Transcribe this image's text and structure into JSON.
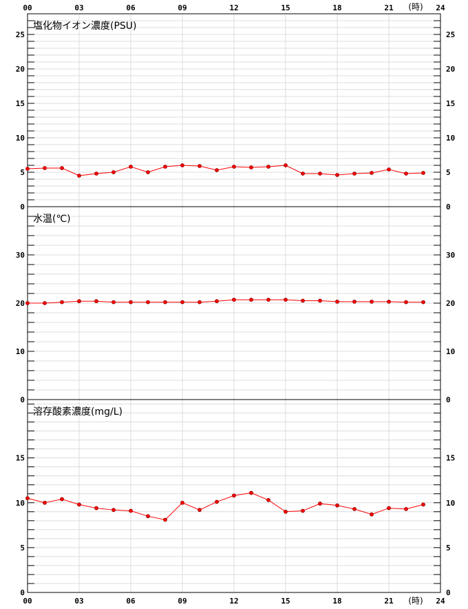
{
  "x_ticks": [
    "00",
    "03",
    "06",
    "09",
    "12",
    "15",
    "18",
    "21",
    "24"
  ],
  "time_unit": "(時)",
  "chart_data": [
    {
      "type": "line",
      "title": "塩化物イオン濃度(PSU)",
      "ylim": [
        0,
        28
      ],
      "yticks": [
        0,
        5,
        10,
        15,
        20,
        25
      ],
      "x": [
        0,
        1,
        2,
        3,
        4,
        5,
        6,
        7,
        8,
        9,
        10,
        11,
        12,
        13,
        14,
        15,
        16,
        17,
        18,
        19,
        20,
        21,
        22,
        23
      ],
      "values": [
        5.5,
        5.6,
        5.6,
        4.5,
        4.8,
        5.0,
        5.8,
        5.0,
        5.8,
        6.0,
        5.9,
        5.3,
        5.8,
        5.7,
        5.8,
        6.0,
        4.8,
        4.8,
        4.6,
        4.8,
        4.9,
        5.4,
        4.8,
        4.9
      ],
      "color": "#ff0000"
    },
    {
      "type": "line",
      "title": "水温(℃)",
      "ylim": [
        0,
        40
      ],
      "yticks": [
        0,
        10,
        20,
        30
      ],
      "x": [
        0,
        1,
        2,
        3,
        4,
        5,
        6,
        7,
        8,
        9,
        10,
        11,
        12,
        13,
        14,
        15,
        16,
        17,
        18,
        19,
        20,
        21,
        22,
        23
      ],
      "values": [
        20.0,
        20.0,
        20.2,
        20.4,
        20.4,
        20.2,
        20.2,
        20.2,
        20.2,
        20.2,
        20.2,
        20.4,
        20.7,
        20.7,
        20.7,
        20.7,
        20.5,
        20.5,
        20.3,
        20.3,
        20.3,
        20.3,
        20.2,
        20.2
      ],
      "color": "#ff0000"
    },
    {
      "type": "line",
      "title": "溶存酸素濃度(mg/L)",
      "ylim": [
        0,
        21.5
      ],
      "yticks": [
        0,
        5,
        10,
        15
      ],
      "x": [
        0,
        1,
        2,
        3,
        4,
        5,
        6,
        7,
        8,
        9,
        10,
        11,
        12,
        13,
        14,
        15,
        16,
        17,
        18,
        19,
        20,
        21,
        22,
        23
      ],
      "values": [
        10.5,
        10.0,
        10.4,
        9.8,
        9.4,
        9.2,
        9.1,
        8.5,
        8.1,
        10.0,
        9.2,
        10.1,
        10.8,
        11.1,
        10.3,
        9.0,
        9.1,
        9.9,
        9.7,
        9.3,
        8.7,
        9.4,
        9.3,
        9.8
      ],
      "color": "#ff0000"
    }
  ]
}
